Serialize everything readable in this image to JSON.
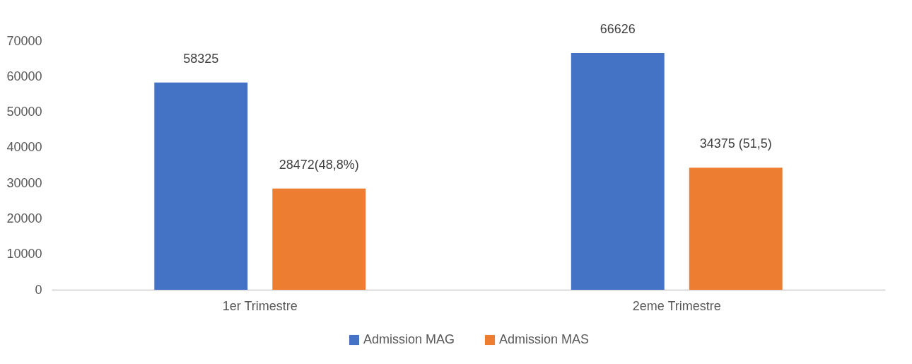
{
  "chart_data": {
    "type": "bar",
    "categories": [
      "1er Trimestre",
      "2eme Trimestre"
    ],
    "series": [
      {
        "name": "Admission MAG",
        "color": "#4472c4",
        "values": [
          58325,
          66626
        ],
        "value_labels": [
          "58325",
          "66626"
        ]
      },
      {
        "name": "Admission MAS",
        "color": "#ed7d31",
        "values": [
          28472,
          34375
        ],
        "value_labels": [
          "28472(48,8%)",
          "34375 (51,5)"
        ]
      }
    ],
    "ylim": [
      0,
      70000
    ],
    "yticks": [
      0,
      10000,
      20000,
      30000,
      40000,
      50000,
      60000,
      70000
    ],
    "grid": false,
    "legend": "bottom"
  }
}
